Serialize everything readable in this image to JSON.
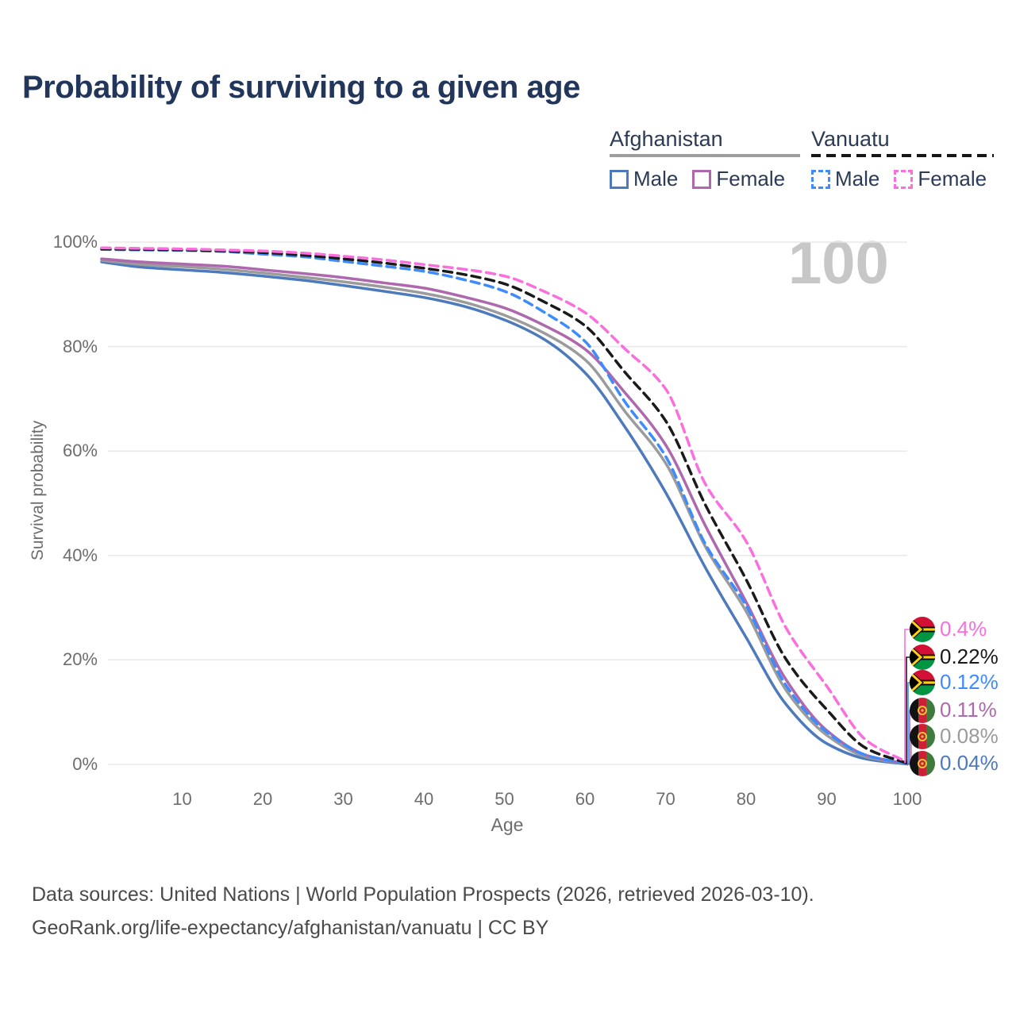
{
  "title": "Probability of surviving to a given age",
  "watermark": "100",
  "legend": {
    "groups": [
      {
        "name": "Afghanistan",
        "line_style": "solid",
        "rule_color": "#9e9e9e",
        "items": [
          {
            "label": "Male",
            "color": "#4d79bd"
          },
          {
            "label": "Female",
            "color": "#ae68ad"
          }
        ]
      },
      {
        "name": "Vanuatu",
        "line_style": "dashed",
        "rule_color": "#161616",
        "items": [
          {
            "label": "Male",
            "color": "#3d8bfd"
          },
          {
            "label": "Female",
            "color": "#fa6ede"
          }
        ]
      }
    ]
  },
  "chart_data": {
    "type": "line",
    "title": "Probability of surviving to a given age",
    "xlabel": "Age",
    "ylabel": "Survival probability",
    "xlim": [
      0,
      100
    ],
    "ylim": [
      0,
      100
    ],
    "grid": "horizontal",
    "x_ticks": [
      10,
      20,
      30,
      40,
      50,
      60,
      70,
      80,
      90,
      100
    ],
    "y_tick_labels": [
      "0%",
      "20%",
      "40%",
      "60%",
      "80%",
      "100%"
    ],
    "x": [
      0,
      5,
      10,
      15,
      20,
      25,
      30,
      35,
      40,
      45,
      50,
      55,
      60,
      65,
      70,
      75,
      80,
      85,
      90,
      95,
      100
    ],
    "series": [
      {
        "name": "Afghanistan Male",
        "country": "Afghanistan",
        "sex": "Male",
        "color": "#4d79bd",
        "dash": false,
        "end_label": "0.04%",
        "values": [
          96.2,
          95.2,
          94.7,
          94.2,
          93.5,
          92.7,
          91.7,
          90.6,
          89.4,
          87.7,
          85.1,
          81.3,
          75.0,
          64.5,
          52.1,
          37.5,
          24.3,
          11.4,
          4.0,
          1.0,
          0.04
        ]
      },
      {
        "name": "Afghanistan Both sexes",
        "country": "Afghanistan",
        "sex": "Both",
        "color": "#9b9b9b",
        "dash": false,
        "end_label": "0.08%",
        "values": [
          96.5,
          95.7,
          95.3,
          94.8,
          94.1,
          93.3,
          92.4,
          91.4,
          90.2,
          88.5,
          86.0,
          82.5,
          77.5,
          67.5,
          57.7,
          41.5,
          29.3,
          14.1,
          5.6,
          1.4,
          0.08
        ]
      },
      {
        "name": "Afghanistan Female",
        "country": "Afghanistan",
        "sex": "Female",
        "color": "#ae68ad",
        "dash": false,
        "end_label": "0.11%",
        "values": [
          96.8,
          96.2,
          95.8,
          95.4,
          94.7,
          94.0,
          93.2,
          92.2,
          91.2,
          89.5,
          87.4,
          84.0,
          79.5,
          71.1,
          61.2,
          45.5,
          31.1,
          16.1,
          6.5,
          1.7,
          0.11
        ]
      },
      {
        "name": "Vanuatu Male",
        "country": "Vanuatu",
        "sex": "Male",
        "color": "#3d8bfd",
        "dash": true,
        "end_label": "0.12%",
        "values": [
          98.6,
          98.5,
          98.4,
          98.2,
          97.7,
          97.2,
          96.3,
          95.4,
          94.4,
          92.8,
          90.6,
          86.5,
          81.0,
          69.3,
          59.0,
          42.0,
          30.4,
          15.0,
          6.2,
          1.7,
          0.12
        ]
      },
      {
        "name": "Vanuatu Both sexes",
        "country": "Vanuatu",
        "sex": "Both",
        "color": "#1a1a1a",
        "dash": true,
        "end_label": "0.22%",
        "values": [
          98.7,
          98.6,
          98.5,
          98.3,
          98.0,
          97.5,
          96.8,
          96.0,
          95.0,
          93.8,
          92.0,
          88.5,
          84.0,
          75.0,
          65.8,
          49.5,
          35.4,
          20.0,
          10.5,
          3.0,
          0.22
        ]
      },
      {
        "name": "Vanuatu Female",
        "country": "Vanuatu",
        "sex": "Female",
        "color": "#fa6ede",
        "dash": true,
        "end_label": "0.4%",
        "values": [
          98.9,
          98.8,
          98.7,
          98.5,
          98.3,
          97.9,
          97.3,
          96.6,
          95.7,
          94.8,
          93.5,
          90.5,
          86.5,
          79.5,
          71.9,
          53.5,
          42.7,
          26.0,
          15.0,
          4.5,
          0.4
        ]
      }
    ],
    "callouts": [
      {
        "flag": "vanuatu",
        "label": "0.4%",
        "color": "#fa6ede",
        "series": "Vanuatu Female"
      },
      {
        "flag": "vanuatu",
        "label": "0.22%",
        "color": "#1a1a1a",
        "series": "Vanuatu Both sexes"
      },
      {
        "flag": "vanuatu",
        "label": "0.12%",
        "color": "#3d8bfd",
        "series": "Vanuatu Male"
      },
      {
        "flag": "afghanistan",
        "label": "0.11%",
        "color": "#ae68ad",
        "series": "Afghanistan Female"
      },
      {
        "flag": "afghanistan",
        "label": "0.08%",
        "color": "#9b9b9b",
        "series": "Afghanistan Both sexes"
      },
      {
        "flag": "afghanistan",
        "label": "0.04%",
        "color": "#4d79bd",
        "series": "Afghanistan Male"
      }
    ]
  },
  "footer": {
    "line1": "Data sources: United Nations | World Population Prospects (2026, retrieved 2026-03-10).",
    "line2": "GeoRank.org/life-expectancy/afghanistan/vanuatu | CC BY"
  }
}
